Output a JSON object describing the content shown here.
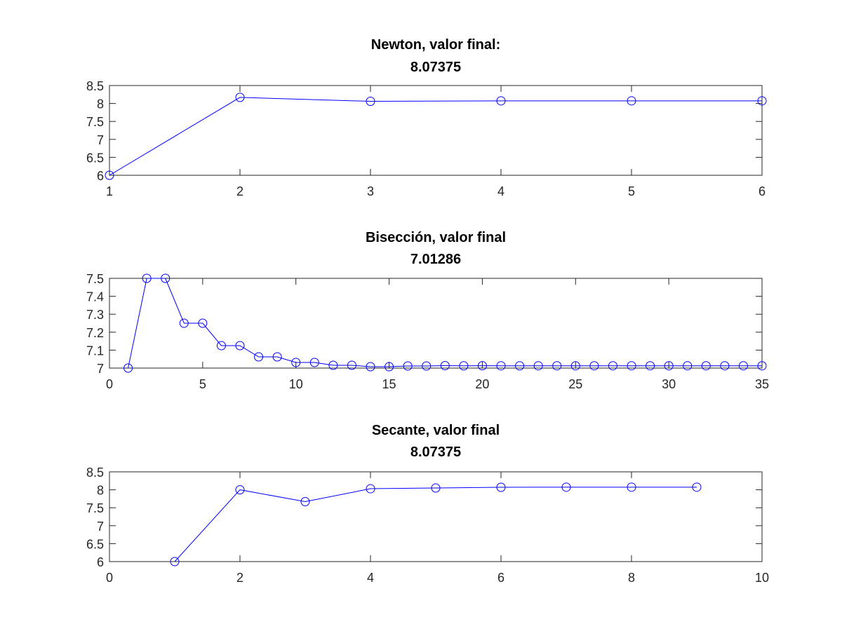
{
  "chart_data": [
    {
      "type": "line",
      "title": [
        "Newton, valor final:",
        "8.07375"
      ],
      "xlabel": "",
      "ylabel": "",
      "xlim": [
        1,
        6
      ],
      "ylim": [
        6,
        8.5
      ],
      "xticks": [
        1,
        2,
        3,
        4,
        5,
        6
      ],
      "yticks": [
        6,
        6.5,
        7,
        7.5,
        8,
        8.5
      ],
      "grid": false,
      "color": "#0000ff",
      "marker": "circle",
      "x": [
        1,
        2,
        3,
        4,
        5,
        6
      ],
      "y": [
        6.0,
        8.17,
        8.06,
        8.07375,
        8.07375,
        8.07375
      ]
    },
    {
      "type": "line",
      "title": [
        "Bisección, valor final",
        "7.01286"
      ],
      "xlabel": "",
      "ylabel": "",
      "xlim": [
        0,
        35
      ],
      "ylim": [
        7,
        7.5
      ],
      "xticks": [
        0,
        5,
        10,
        15,
        20,
        25,
        30,
        35
      ],
      "yticks": [
        7,
        7.1,
        7.2,
        7.3,
        7.4,
        7.5
      ],
      "grid": false,
      "color": "#0000ff",
      "marker": "circle",
      "x": [
        1,
        2,
        3,
        4,
        5,
        6,
        7,
        8,
        9,
        10,
        11,
        12,
        13,
        14,
        15,
        16,
        17,
        18,
        19,
        20,
        21,
        22,
        23,
        24,
        25,
        26,
        27,
        28,
        29,
        30,
        31,
        32,
        33,
        34,
        35
      ],
      "y": [
        7.0,
        7.5,
        7.5,
        7.25,
        7.25,
        7.125,
        7.125,
        7.0625,
        7.0625,
        7.03125,
        7.03125,
        7.015625,
        7.015625,
        7.0078,
        7.0078,
        7.0117,
        7.0117,
        7.0137,
        7.0127,
        7.0132,
        7.0129,
        7.0128,
        7.0129,
        7.01285,
        7.01287,
        7.01286,
        7.01286,
        7.01286,
        7.01286,
        7.01286,
        7.01286,
        7.01286,
        7.01286,
        7.01286,
        7.01286
      ]
    },
    {
      "type": "line",
      "title": [
        "Secante, valor final",
        "8.07375"
      ],
      "xlabel": "",
      "ylabel": "",
      "xlim": [
        0,
        10
      ],
      "ylim": [
        6,
        8.5
      ],
      "xticks": [
        0,
        2,
        4,
        6,
        8,
        10
      ],
      "yticks": [
        6,
        6.5,
        7,
        7.5,
        8,
        8.5
      ],
      "grid": false,
      "color": "#0000ff",
      "marker": "circle",
      "x": [
        1,
        2,
        3,
        4,
        5,
        6,
        7,
        8,
        9
      ],
      "y": [
        6.0,
        8.0,
        7.67,
        8.03,
        8.05,
        8.07,
        8.07375,
        8.07375,
        8.07375
      ]
    }
  ]
}
